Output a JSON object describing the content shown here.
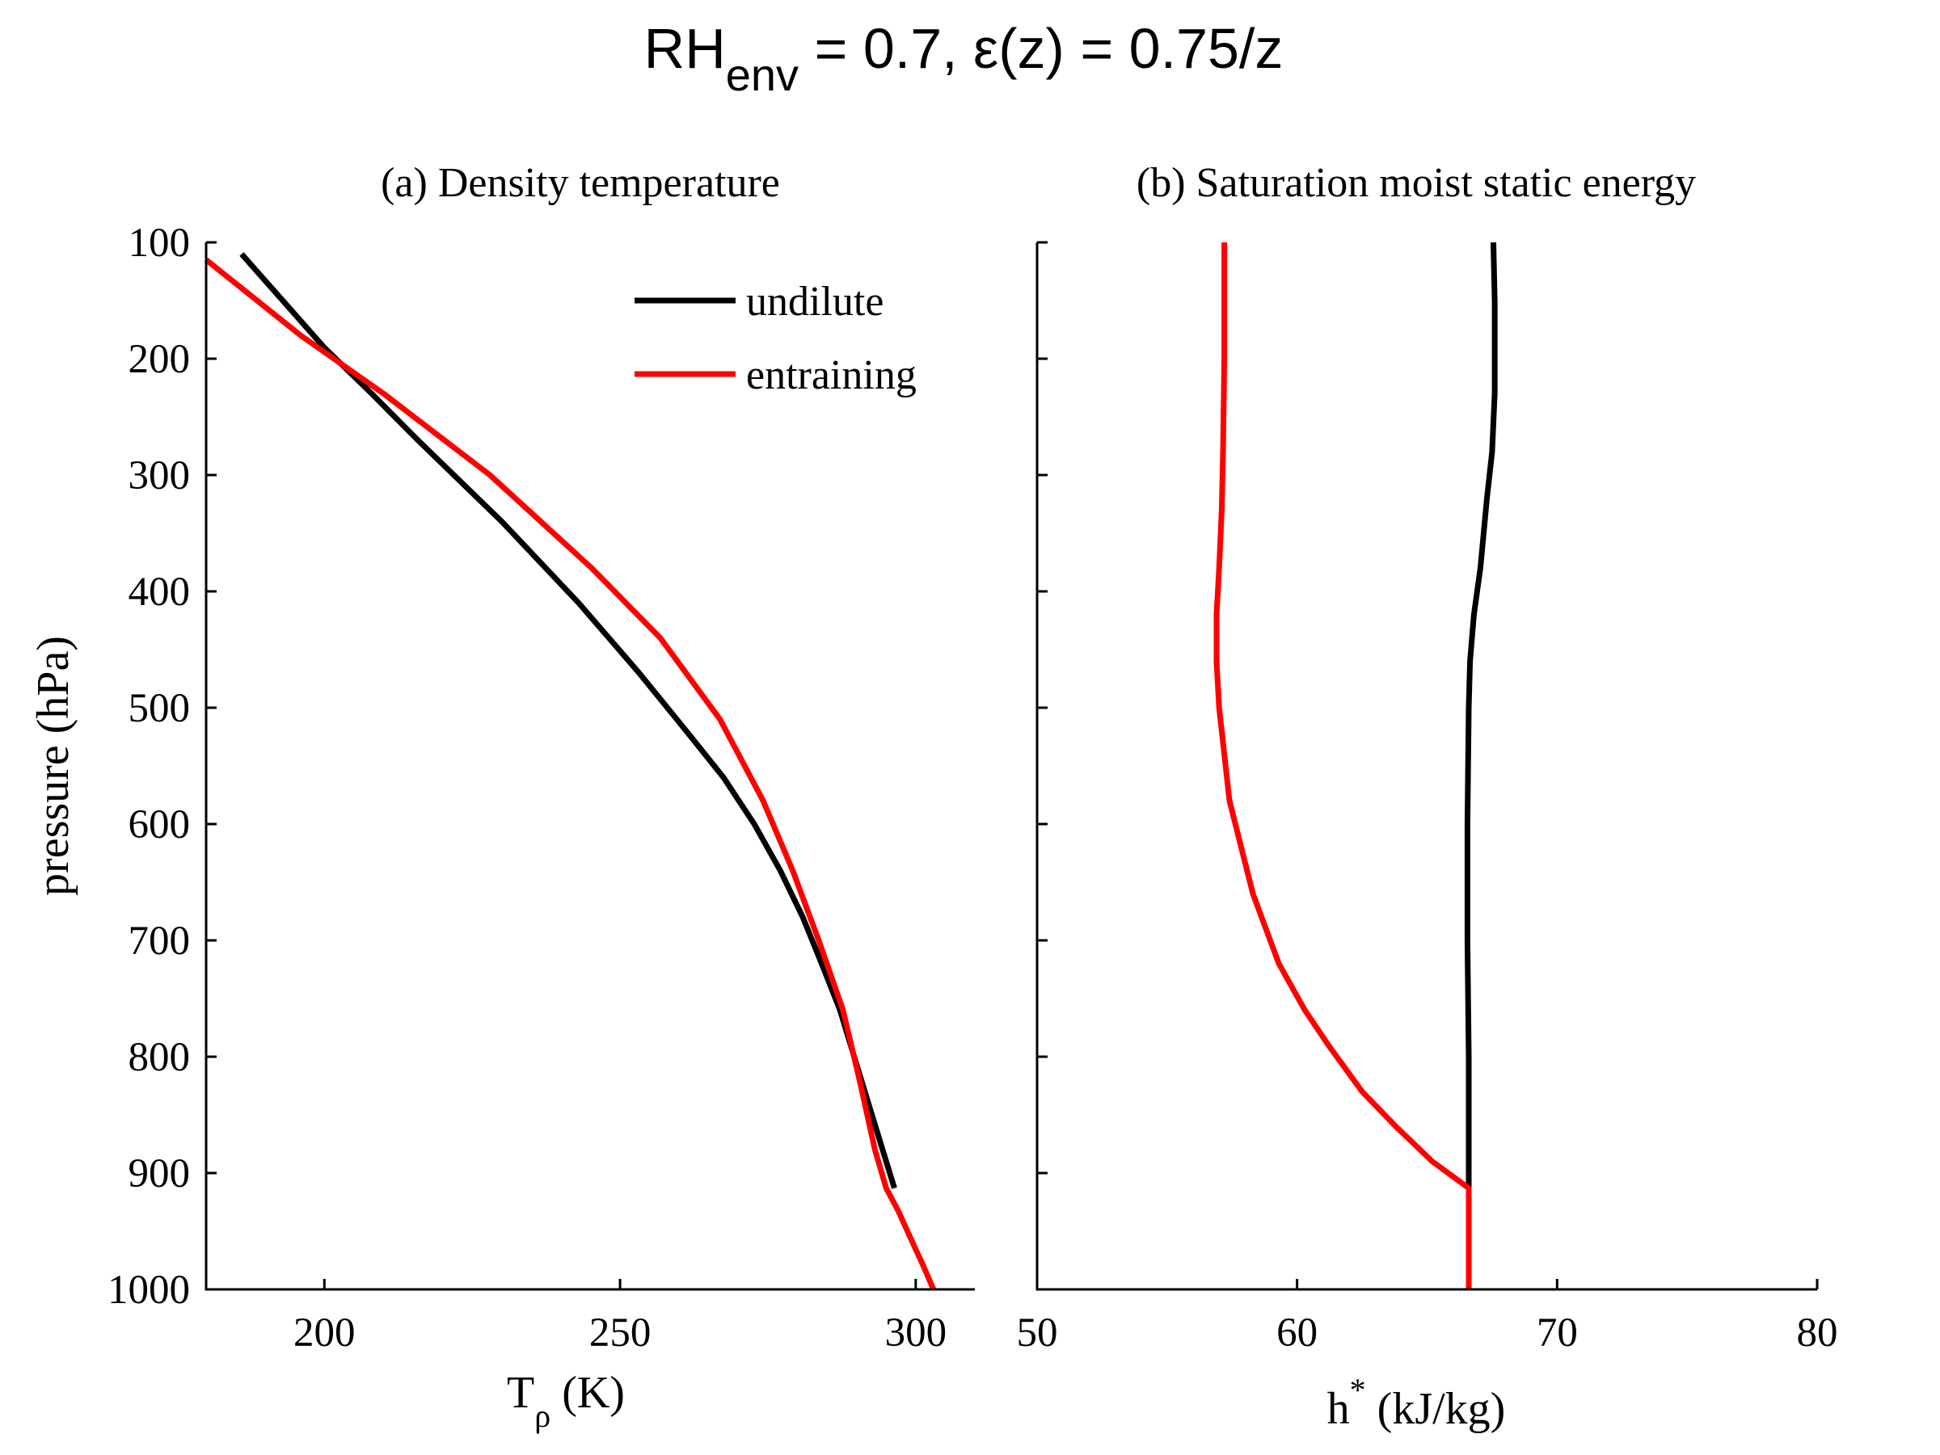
{
  "figure": {
    "suptitle": {
      "base": "RH",
      "sub": "env",
      "rest": " = 0.7, ε(z) = 0.75/z"
    }
  },
  "colors": {
    "undilute": "#000000",
    "entraining": "#ff0000",
    "axes": "#000000"
  },
  "chart_data": [
    {
      "type": "line",
      "title": "(a) Density temperature",
      "xlabel": {
        "base": "T",
        "sub": "ρ",
        "rest": " (K)"
      },
      "ylabel": "pressure (hPa)",
      "xlim": [
        180,
        310
      ],
      "ylim": [
        1000,
        100
      ],
      "y_inverted": true,
      "xticks": [
        200,
        250,
        300
      ],
      "yticks": [
        100,
        200,
        300,
        400,
        500,
        600,
        700,
        800,
        900,
        1000
      ],
      "legend": {
        "placement": "top-right",
        "entries": [
          "undilute",
          "entraining"
        ]
      },
      "series": [
        {
          "name": "undilute",
          "color": "#000000",
          "x": [
            296.4,
            294.4,
            290.8,
            287.2,
            284.1,
            280.9,
            277.1,
            272.7,
            267.5,
            261.2,
            253.2,
            243.0,
            230.0,
            215.8,
            208.0,
            199.9,
            186.0
          ],
          "y": [
            913,
            880,
            820,
            760,
            720,
            680,
            640,
            600,
            560,
            520,
            470,
            410,
            340,
            270,
            230,
            190,
            110
          ]
        },
        {
          "name": "entraining",
          "color": "#ff0000",
          "x": [
            303.0,
            301.3,
            299.5,
            297.0,
            295.0,
            293.1,
            290.5,
            287.7,
            283.6,
            279.2,
            274.2,
            266.9,
            256.8,
            245.2,
            228.0,
            210.0,
            196.0,
            180.0
          ],
          "y": [
            1000,
            980,
            960,
            932,
            913,
            880,
            820,
            760,
            700,
            640,
            580,
            510,
            440,
            380,
            300,
            230,
            180,
            115
          ]
        }
      ]
    },
    {
      "type": "line",
      "title": "(b) Saturation moist static energy",
      "xlabel": {
        "base": "h",
        "sup": "*",
        "rest": " (kJ/kg)"
      },
      "ylabel": "",
      "xlim": [
        50,
        80
      ],
      "ylim": [
        1000,
        100
      ],
      "y_inverted": true,
      "xticks": [
        50,
        60,
        70,
        80
      ],
      "yticks": [
        100,
        200,
        300,
        400,
        500,
        600,
        700,
        800,
        900,
        1000
      ],
      "series": [
        {
          "name": "undilute",
          "color": "#000000",
          "x": [
            66.6,
            66.6,
            66.6,
            66.55,
            66.55,
            66.6,
            66.65,
            66.8,
            67.05,
            67.3,
            67.5,
            67.6,
            67.6,
            67.55
          ],
          "y": [
            1000,
            913,
            800,
            700,
            600,
            500,
            460,
            420,
            380,
            320,
            280,
            230,
            150,
            100
          ]
        },
        {
          "name": "entraining",
          "color": "#ff0000",
          "x": [
            66.6,
            66.6,
            65.2,
            63.8,
            62.5,
            61.2,
            60.3,
            59.3,
            58.3,
            57.4,
            57.0,
            56.9,
            56.9,
            57.0,
            57.1,
            57.15,
            57.2,
            57.2
          ],
          "y": [
            1000,
            913,
            890,
            860,
            830,
            790,
            760,
            720,
            660,
            580,
            500,
            460,
            420,
            380,
            330,
            280,
            200,
            100
          ]
        }
      ]
    }
  ]
}
